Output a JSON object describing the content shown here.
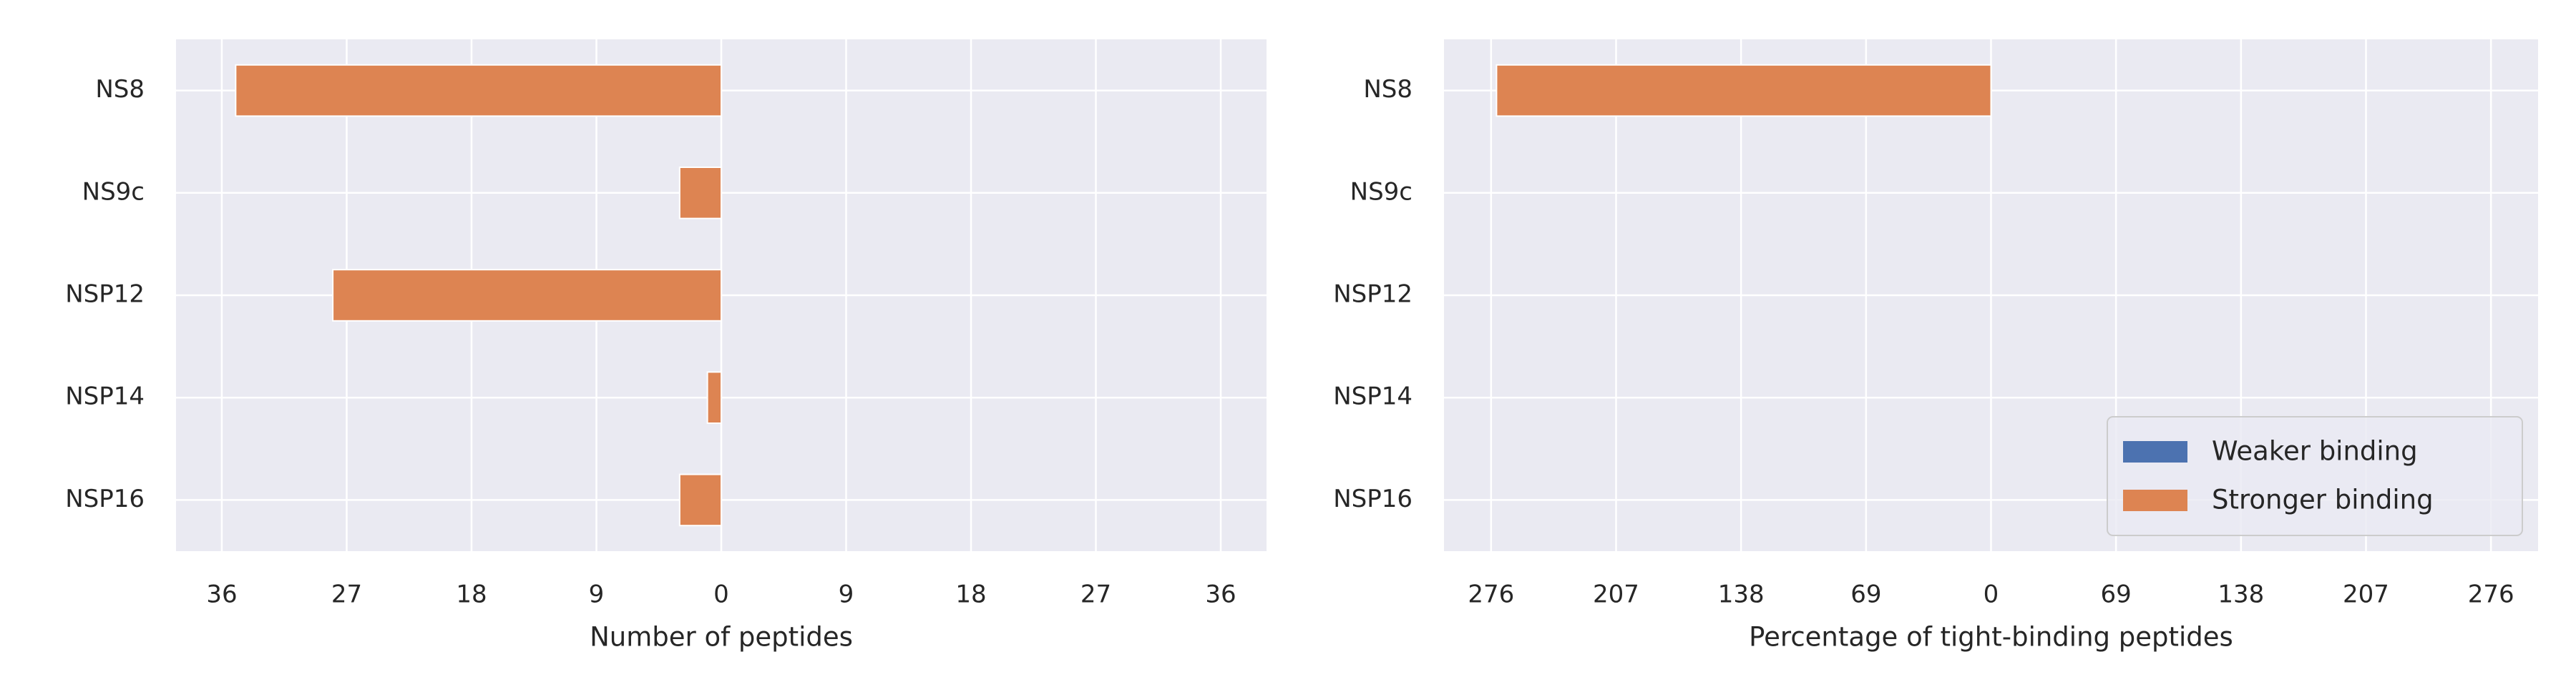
{
  "chart_data": [
    {
      "type": "barh",
      "xlabel": "Number of peptides",
      "categories": [
        "NS8",
        "NS9c",
        "NSP12",
        "NSP14",
        "NSP16"
      ],
      "series": [
        {
          "color": "#4c72b0",
          "values": [
            0,
            0,
            0,
            0,
            0
          ]
        },
        {
          "color": "#dd8452",
          "values": [
            -35,
            -3,
            -28,
            -1,
            -3
          ]
        }
      ],
      "xlim": [
        -39.3,
        39.3
      ],
      "xticks": [
        {
          "value": -36,
          "label": "36"
        },
        {
          "value": -27,
          "label": "27"
        },
        {
          "value": -18,
          "label": "18"
        },
        {
          "value": -9,
          "label": "9"
        },
        0,
        9,
        18,
        27,
        36
      ],
      "grid": true
    },
    {
      "type": "barh",
      "xlabel": "Percentage of tight-binding peptides",
      "categories": [
        "NS8",
        "NS9c",
        "NSP12",
        "NSP14",
        "NSP16"
      ],
      "series": [
        {
          "name": "Weaker binding",
          "color": "#4c72b0",
          "values": [
            0,
            0,
            0,
            0,
            0
          ]
        },
        {
          "name": "Stronger binding",
          "color": "#dd8452",
          "values": [
            -273,
            0,
            0,
            0,
            0
          ]
        }
      ],
      "xlim": [
        -302,
        302
      ],
      "xticks": [
        {
          "value": -276,
          "label": "276"
        },
        {
          "value": -207,
          "label": "207"
        },
        {
          "value": -138,
          "label": "138"
        },
        {
          "value": -69,
          "label": "69"
        },
        0,
        69,
        138,
        207,
        276
      ],
      "grid": true,
      "legend": "lower right"
    }
  ]
}
